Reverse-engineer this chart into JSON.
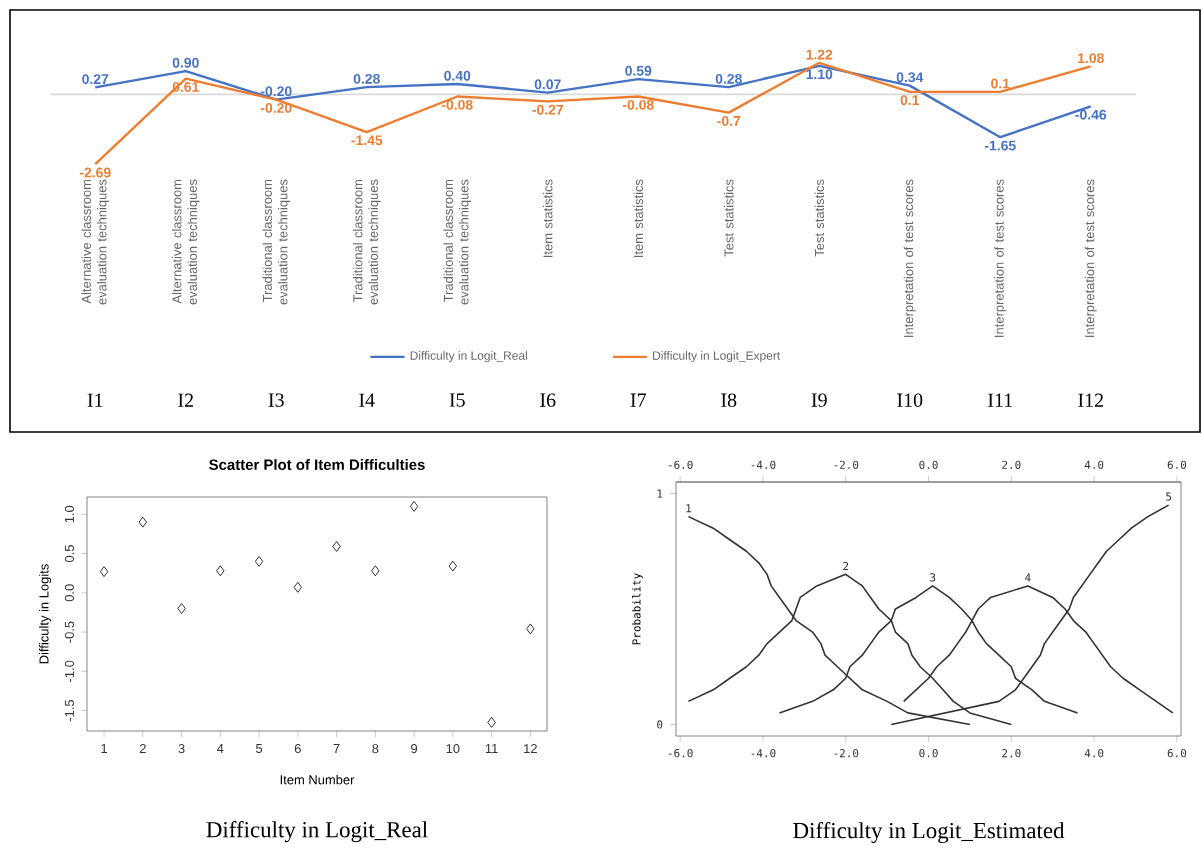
{
  "chart_data": [
    {
      "type": "line",
      "categories": [
        "Alternative classroom evaluation techniques",
        "Alternative classroom evaluation techniques",
        "Traditional classroom evaluation techniques",
        "Traditional classroom evaluation techniques",
        "Traditional classroom evaluation techniques",
        "Item statistics",
        "Item statistics",
        "Test statistics",
        "Test statistics",
        "Interpretation of test scores",
        "Interpretation of test scores",
        "Interpretation of test scores"
      ],
      "series": [
        {
          "name": "Difficulty in Logit_Real",
          "color": "#4472c4",
          "values": [
            0.27,
            0.9,
            -0.2,
            0.28,
            0.4,
            0.07,
            0.59,
            0.28,
            1.1,
            0.34,
            -1.65,
            -0.46
          ],
          "value_labels": [
            "0.27",
            "0.90",
            "-0.20",
            "0.28",
            "0.40",
            "0.07",
            "0.59",
            "0.28",
            "1.10",
            "0.34",
            "-1.65",
            "-0.46"
          ]
        },
        {
          "name": "Difficulty in Logit_Expert",
          "color": "#ed7d31",
          "values": [
            -2.69,
            0.61,
            -0.2,
            -1.45,
            -0.08,
            -0.27,
            -0.08,
            -0.7,
            1.22,
            0.1,
            0.1,
            1.08
          ],
          "value_labels": [
            "-2.69",
            "0.61",
            "-0.20",
            "-1.45",
            "-0.08",
            "-0.27",
            "-0.08",
            "-0.7",
            "1.22",
            "0.1",
            "0.1",
            "1.08"
          ]
        }
      ],
      "legend": "bottom",
      "tick_labels": "x",
      "ref_lines": [
        {
          "axis": "y",
          "value": 0,
          "color": "#d9d9d9"
        }
      ],
      "annotations": [
        "I1",
        "I2",
        "I3",
        "I4",
        "I5",
        "I6",
        "I7",
        "I8",
        "I9",
        "I10",
        "I11",
        "I12"
      ]
    },
    {
      "type": "scatter",
      "title": "Scatter Plot of Item Difficulties",
      "xlabel": "Item Number",
      "ylabel": "Difficulty in Logits",
      "x": [
        1,
        2,
        3,
        4,
        5,
        6,
        7,
        8,
        9,
        10,
        11,
        12
      ],
      "values": [
        0.27,
        0.9,
        -0.2,
        0.28,
        0.4,
        0.07,
        0.59,
        0.28,
        1.1,
        0.34,
        -1.65,
        -0.46
      ],
      "color": "#000000",
      "marker": "diamond",
      "xlim": [
        0.56,
        12.43
      ],
      "ylim": [
        -1.76,
        1.22
      ],
      "xticks": [
        1,
        2,
        3,
        4,
        5,
        6,
        7,
        8,
        9,
        10,
        11,
        12
      ],
      "yticks": [
        -1.5,
        {
          "value": -1,
          "label": "-1.0"
        },
        -0.5,
        {
          "value": 0,
          "label": "0.0"
        },
        0.5,
        {
          "value": 1,
          "label": "1.0"
        }
      ],
      "annotations": [
        "Difficulty in Logit_Real"
      ]
    },
    {
      "type": "line",
      "ylabel": "Probability",
      "series": [
        {
          "name": "1",
          "color": "#333333",
          "x": [
            -5.8,
            -5.2,
            -4.8,
            -4.4,
            -4.1,
            -3.9,
            -3.8,
            -3.6,
            -3.4,
            -3.2,
            -2.8,
            -2.6,
            -2.5,
            -2.2,
            -1.9,
            -1.6,
            -1.0,
            -0.5,
            1.0
          ],
          "values": [
            0.9,
            0.85,
            0.8,
            0.75,
            0.7,
            0.65,
            0.6,
            0.55,
            0.5,
            0.45,
            0.4,
            0.35,
            0.3,
            0.25,
            0.2,
            0.15,
            0.1,
            0.05,
            0
          ]
        },
        {
          "name": "2",
          "color": "#333333",
          "x": [
            -5.8,
            -5.2,
            -4.8,
            -4.4,
            -4.1,
            -3.9,
            -3.6,
            -3.3,
            -3.2,
            -3.1,
            -2.7,
            -2.0,
            -1.6,
            -1.4,
            -1.2,
            -0.9,
            -0.8,
            -0.5,
            -0.4,
            -0.2,
            0.1,
            0.35,
            0.6,
            1.0,
            2.0
          ],
          "values": [
            0.1,
            0.15,
            0.2,
            0.25,
            0.3,
            0.35,
            0.4,
            0.45,
            0.5,
            0.55,
            0.6,
            0.65,
            0.6,
            0.55,
            0.5,
            0.45,
            0.4,
            0.35,
            0.3,
            0.25,
            0.2,
            0.15,
            0.1,
            0.05,
            0
          ]
        },
        {
          "name": "3",
          "color": "#333333",
          "x": [
            -3.6,
            -2.8,
            -2.3,
            -2.0,
            -1.9,
            -1.6,
            -1.4,
            -1.2,
            -0.9,
            -0.8,
            -0.3,
            0.1,
            0.5,
            0.8,
            1.05,
            1.2,
            1.4,
            1.7,
            2.0,
            2.1,
            2.5,
            2.8,
            3.6
          ],
          "values": [
            0.05,
            0.1,
            0.15,
            0.2,
            0.25,
            0.3,
            0.35,
            0.4,
            0.45,
            0.5,
            0.55,
            0.6,
            0.55,
            0.5,
            0.45,
            0.4,
            0.35,
            0.3,
            0.25,
            0.2,
            0.15,
            0.1,
            0.05
          ]
        },
        {
          "name": "4",
          "color": "#333333",
          "x": [
            -0.6,
            -0.3,
            0.0,
            0.2,
            0.5,
            0.7,
            0.9,
            1.05,
            1.2,
            1.5,
            2.4,
            3.0,
            3.3,
            3.5,
            3.8,
            4.0,
            4.2,
            4.4,
            4.7,
            5.1,
            5.5,
            5.9
          ],
          "values": [
            0.1,
            0.15,
            0.2,
            0.25,
            0.3,
            0.35,
            0.4,
            0.45,
            0.5,
            0.55,
            0.6,
            0.55,
            0.5,
            0.45,
            0.4,
            0.35,
            0.3,
            0.25,
            0.2,
            0.15,
            0.1,
            0.05
          ]
        },
        {
          "name": "5",
          "color": "#333333",
          "x": [
            -0.9,
            1.7,
            2.1,
            2.3,
            2.5,
            2.7,
            2.8,
            3.0,
            3.2,
            3.4,
            3.5,
            3.7,
            3.9,
            4.1,
            4.3,
            4.6,
            4.9,
            5.3,
            5.8
          ],
          "values": [
            0,
            0.1,
            0.15,
            0.2,
            0.25,
            0.3,
            0.35,
            0.4,
            0.45,
            0.5,
            0.55,
            0.6,
            0.65,
            0.7,
            0.75,
            0.8,
            0.85,
            0.9,
            0.95
          ]
        }
      ],
      "xlim": [
        -6.1,
        6.1
      ],
      "ylim": [
        -0.05,
        1.05
      ],
      "xticks": [
        {
          "value": -6,
          "label": "-6.0"
        },
        {
          "value": -4,
          "label": "-4.0"
        },
        {
          "value": -2,
          "label": "-2.0"
        },
        {
          "value": 0,
          "label": "0.0"
        },
        {
          "value": 2,
          "label": "2.0"
        },
        {
          "value": 4,
          "label": "4.0"
        },
        {
          "value": 6,
          "label": "6.0"
        }
      ],
      "x2lim": [
        -6.1,
        6.1
      ],
      "x2ticks": [
        {
          "value": -6,
          "label": "-6.0"
        },
        {
          "value": -4,
          "label": "-4.0"
        },
        {
          "value": -2,
          "label": "-2.0"
        },
        {
          "value": 0,
          "label": "0.0"
        },
        {
          "value": 2,
          "label": "2.0"
        },
        {
          "value": 4,
          "label": "4.0"
        },
        {
          "value": 6,
          "label": "6.0"
        }
      ],
      "yticks": [
        0,
        1
      ],
      "annotations": [
        "Difficulty in Logit_Estimated"
      ]
    }
  ]
}
